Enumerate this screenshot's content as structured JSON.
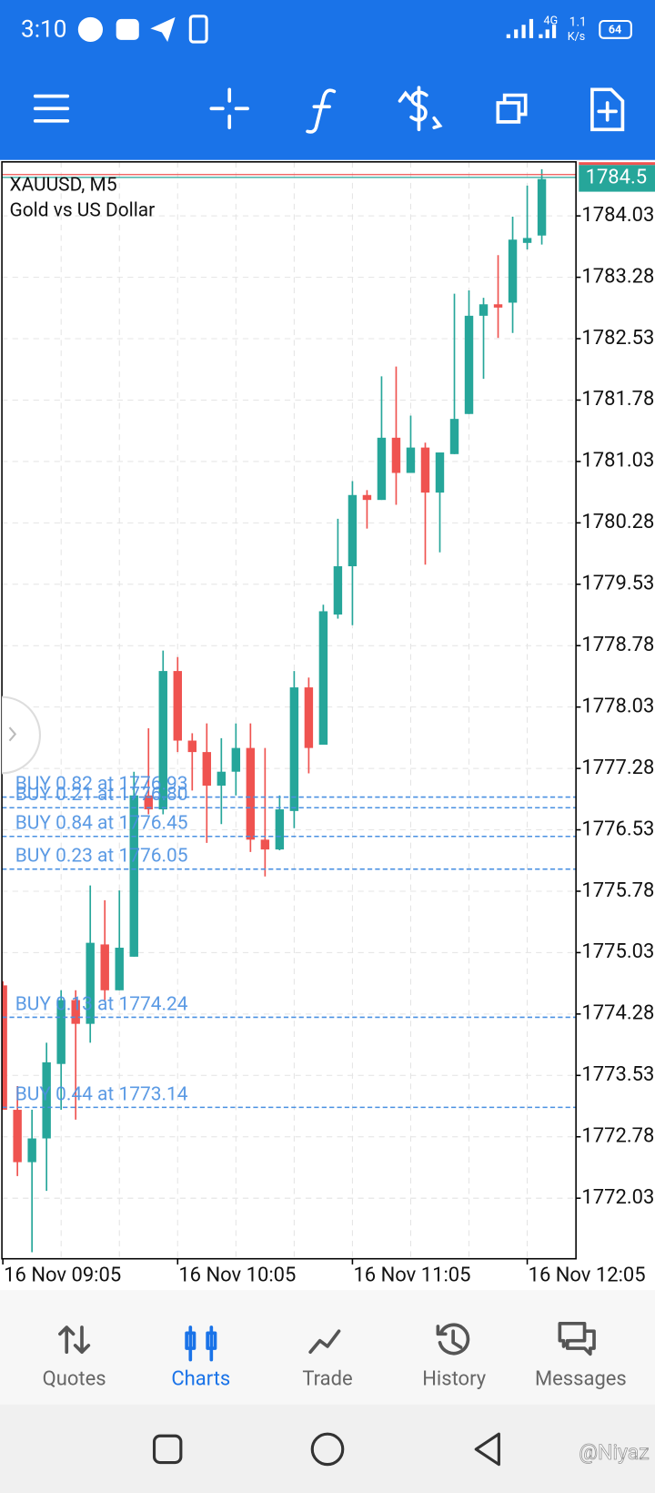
{
  "status_bar": {
    "time": "3:10",
    "network": "4G",
    "speed": "1.1",
    "speed_unit": "K/s",
    "battery": "64"
  },
  "chart_data": {
    "type": "candlestick",
    "title": "XAUUSD, M5",
    "subtitle": "Gold vs US Dollar",
    "categories": [
      "16 Nov 09:05",
      null,
      null,
      null,
      null,
      null,
      null,
      null,
      null,
      null,
      null,
      null,
      "16 Nov 10:05",
      null,
      null,
      null,
      null,
      null,
      null,
      null,
      null,
      null,
      null,
      null,
      "16 Nov 11:05",
      null,
      null,
      null,
      null,
      null,
      null,
      null,
      null,
      null,
      null,
      null,
      "16 Nov 12:05",
      null
    ],
    "open": [
      1774.63,
      1773.11,
      1772.47,
      1772.76,
      1773.67,
      1774.45,
      1774.16,
      1775.13,
      1774.57,
      1774.98,
      1776.95,
      1776.78,
      1778.47,
      1777.62,
      1777.48,
      1777.07,
      1777.24,
      1777.53,
      1776.41,
      1776.29,
      1776.76,
      1778.27,
      1777.57,
      1779.16,
      1779.75,
      1780.62,
      1780.56,
      1781.32,
      1780.89,
      1781.2,
      1780.65,
      1781.12,
      1781.61,
      1782.81,
      1782.95,
      1782.97,
      1783.7,
      1783.79
    ],
    "high": [
      1774.68,
      1773.4,
      1773.11,
      1773.93,
      1774.57,
      1774.57,
      1775.85,
      1775.67,
      1775.79,
      1777.24,
      1777.77,
      1778.72,
      1778.64,
      1777.71,
      1777.83,
      1777.65,
      1777.83,
      1777.83,
      1777.53,
      1776.95,
      1778.47,
      1778.39,
      1779.28,
      1780.33,
      1780.79,
      1780.68,
      1782.07,
      1782.19,
      1781.59,
      1781.26,
      1781.14,
      1783.08,
      1783.12,
      1783.03,
      1783.55,
      1784.02,
      1784.4,
      1784.6
    ],
    "low": [
      1773.11,
      1772.3,
      1771.37,
      1772.12,
      1773.11,
      1772.99,
      1773.93,
      1774.45,
      1774.57,
      1774.98,
      1776.72,
      1776.72,
      1777.48,
      1777.01,
      1776.37,
      1776.6,
      1776.95,
      1776.26,
      1775.96,
      1776.28,
      1776.55,
      1777.22,
      1777.57,
      1779.11,
      1779.03,
      1780.21,
      1780.56,
      1780.5,
      1780.89,
      1779.77,
      1779.92,
      1781.12,
      1781.61,
      1782.04,
      1782.54,
      1782.6,
      1783.62,
      1783.68
    ],
    "close": [
      1773.11,
      1772.47,
      1772.76,
      1773.69,
      1774.45,
      1774.16,
      1775.15,
      1774.57,
      1775.09,
      1776.95,
      1776.78,
      1778.47,
      1777.62,
      1777.48,
      1777.07,
      1777.24,
      1777.53,
      1776.41,
      1776.29,
      1776.78,
      1778.27,
      1777.53,
      1779.2,
      1779.75,
      1780.62,
      1780.56,
      1781.32,
      1780.89,
      1781.2,
      1780.65,
      1781.14,
      1781.55,
      1782.81,
      1782.95,
      1782.91,
      1783.74,
      1783.76,
      1784.48
    ],
    "up_color": "#26a69a",
    "down_color": "#ef5350",
    "ylim": [
      1771.29,
      1784.69
    ],
    "yticks": [
      1784.03,
      1783.28,
      1782.53,
      1781.78,
      1781.03,
      1780.28,
      1779.53,
      1778.78,
      1778.03,
      1777.28,
      1776.53,
      1775.78,
      1775.03,
      1774.28,
      1773.53,
      1772.78,
      1772.03
    ],
    "grid": true,
    "last_price": 1784.5,
    "orders": [
      {
        "label": "BUY 0.82 at 1776.93",
        "price": 1776.93
      },
      {
        "label": "BUY 0.21 at 1776.80",
        "price": 1776.8
      },
      {
        "label": "BUY 0.84 at 1776.45",
        "price": 1776.45
      },
      {
        "label": "BUY 0.23 at 1776.05",
        "price": 1776.05
      },
      {
        "label": "BUY 0.13 at 1774.24",
        "price": 1774.24
      },
      {
        "label": "BUY 0.44 at 1773.14",
        "price": 1773.14
      }
    ],
    "order_color": "#4a90e2"
  },
  "nav": {
    "items": [
      "Quotes",
      "Charts",
      "Trade",
      "History",
      "Messages"
    ],
    "active": 1
  },
  "watermark": "@Niyaz"
}
